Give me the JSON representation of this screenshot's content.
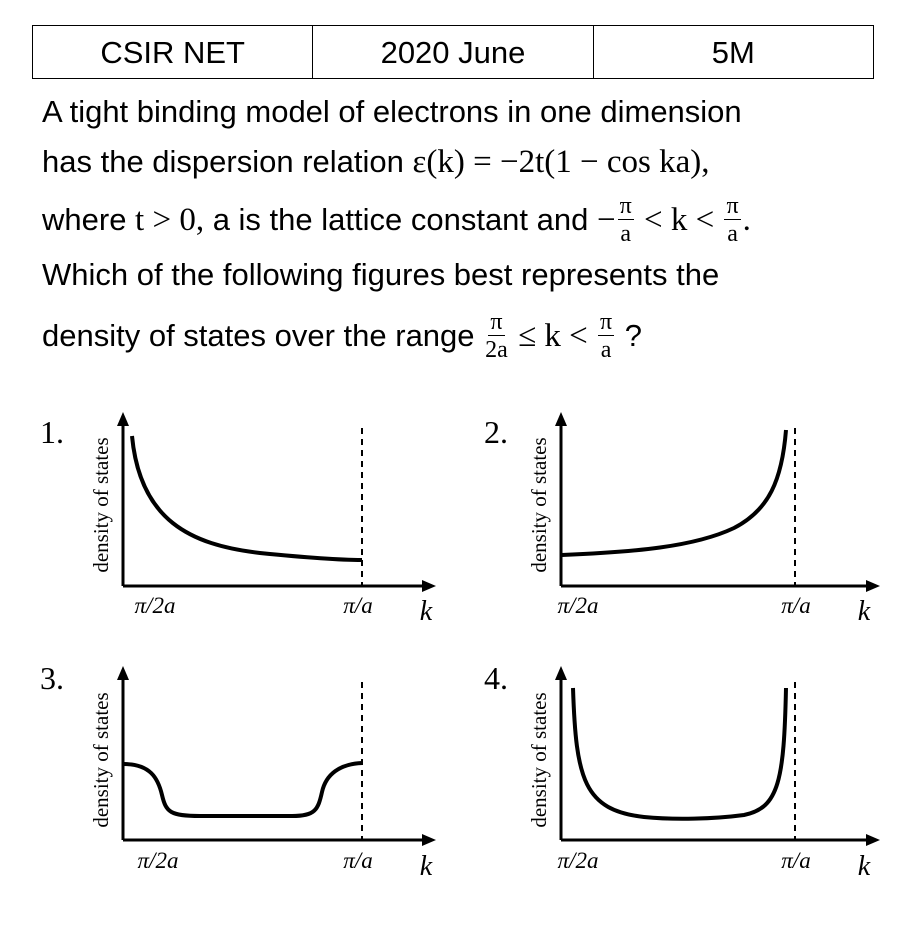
{
  "header": {
    "cells": [
      "CSIR NET",
      "2020 June",
      "5M"
    ]
  },
  "question": {
    "line1": "A tight binding model of electrons in one dimension",
    "line2_text": "has the dispersion relation ",
    "line2_math": "ε(k) = −2t(1 − cos ka),",
    "line3_text_a": "where ",
    "line3_math_a": "t > 0,",
    "line3_text_b": " a is the lattice constant and ",
    "line3_math_b": "−",
    "line3_frac1_num": "π",
    "line3_frac1_den": "a",
    "line3_math_c": " < k < ",
    "line3_frac2_num": "π",
    "line3_frac2_den": "a",
    "line3_end": ".",
    "line4": "Which of the following figures best represents the",
    "line5_text": "density of states over the range ",
    "line5_frac1_num": "π",
    "line5_frac1_den": "2a",
    "line5_math": " ≤ k < ",
    "line5_frac2_num": "π",
    "line5_frac2_den": "a",
    "line5_end": " ?"
  },
  "options": [
    {
      "label": "1.",
      "y_axis_label": "density of states",
      "x_tick_left": "π/2a",
      "x_tick_right": "π/a",
      "x_axis_label": "k",
      "curve_shape": "decreasing from left singularity"
    },
    {
      "label": "2.",
      "y_axis_label": "density of states",
      "x_tick_left": "π/2a",
      "x_tick_right": "π/a",
      "x_axis_label": "k",
      "curve_shape": "increasing to right singularity"
    },
    {
      "label": "3.",
      "y_axis_label": "density of states",
      "x_tick_left": "π/2a",
      "x_tick_right": "π/a",
      "x_axis_label": "k",
      "curve_shape": "flat with steps at both ends"
    },
    {
      "label": "4.",
      "y_axis_label": "density of states",
      "x_tick_left": "π/2a",
      "x_tick_right": "π/a",
      "x_axis_label": "k",
      "curve_shape": "singularities at both ends"
    }
  ]
}
